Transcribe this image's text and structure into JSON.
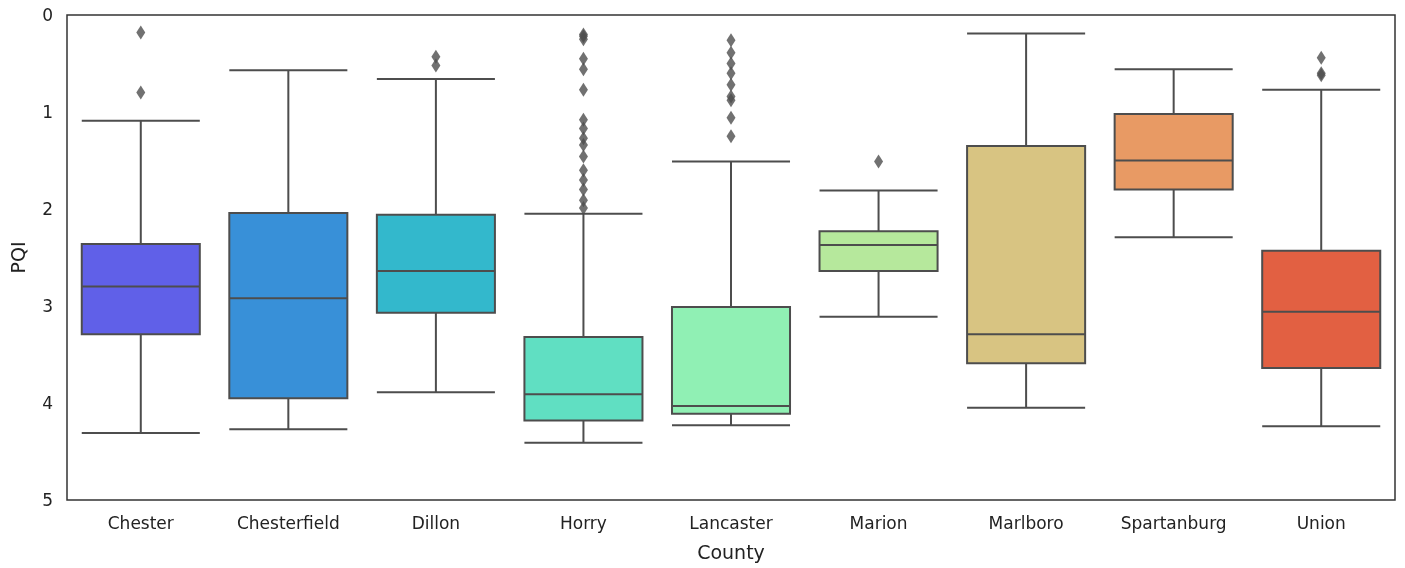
{
  "chart_data": {
    "type": "box",
    "xlabel": "County",
    "ylabel": "PQI",
    "categories": [
      "Chester",
      "Chesterfield",
      "Dillon",
      "Horry",
      "Lancaster",
      "Marion",
      "Marlboro",
      "Spartanburg",
      "Union"
    ],
    "colors": [
      "#6060e8",
      "#3890d8",
      "#33b8cc",
      "#60dfc2",
      "#90f0b4",
      "#b6e89c",
      "#d8c482",
      "#e89a64",
      "#e26042"
    ],
    "boxes": [
      {
        "low": 4.31,
        "q1": 3.29,
        "median": 2.8,
        "q3": 2.36,
        "high": 1.09,
        "outliers": [
          0.18,
          0.8
        ]
      },
      {
        "low": 4.27,
        "q1": 3.95,
        "median": 2.92,
        "q3": 2.04,
        "high": 0.57
      },
      {
        "low": 3.89,
        "q1": 3.07,
        "median": 2.64,
        "q3": 2.06,
        "high": 0.66,
        "outliers": [
          0.43,
          0.52
        ]
      },
      {
        "low": 4.41,
        "q1": 4.18,
        "median": 3.91,
        "q3": 3.32,
        "high": 2.05,
        "outliers": [
          0.2,
          0.22,
          0.25,
          0.45,
          0.56,
          0.77,
          1.08,
          1.17,
          1.27,
          1.34,
          1.46,
          1.6,
          1.7,
          1.8,
          1.91,
          1.99
        ]
      },
      {
        "low": 4.23,
        "q1": 4.11,
        "median": 4.03,
        "q3": 3.01,
        "high": 1.51,
        "outliers": [
          0.26,
          0.39,
          0.5,
          0.6,
          0.72,
          0.84,
          0.88,
          1.06,
          1.25
        ]
      },
      {
        "low": 3.11,
        "q1": 2.64,
        "median": 2.37,
        "q3": 2.23,
        "high": 1.81,
        "outliers": [
          1.51
        ]
      },
      {
        "low": 4.05,
        "q1": 3.59,
        "median": 3.29,
        "q3": 1.35,
        "high": 0.19
      },
      {
        "low": 2.29,
        "q1": 1.8,
        "median": 1.5,
        "q3": 1.02,
        "high": 0.56
      },
      {
        "low": 4.24,
        "q1": 3.64,
        "median": 3.06,
        "q3": 2.43,
        "high": 0.77,
        "outliers": [
          0.44,
          0.6,
          0.62
        ]
      }
    ],
    "ylim": [
      5,
      0
    ],
    "yticks": [
      0,
      1,
      2,
      3,
      4,
      5
    ],
    "marker": "diamond",
    "grid": false
  }
}
